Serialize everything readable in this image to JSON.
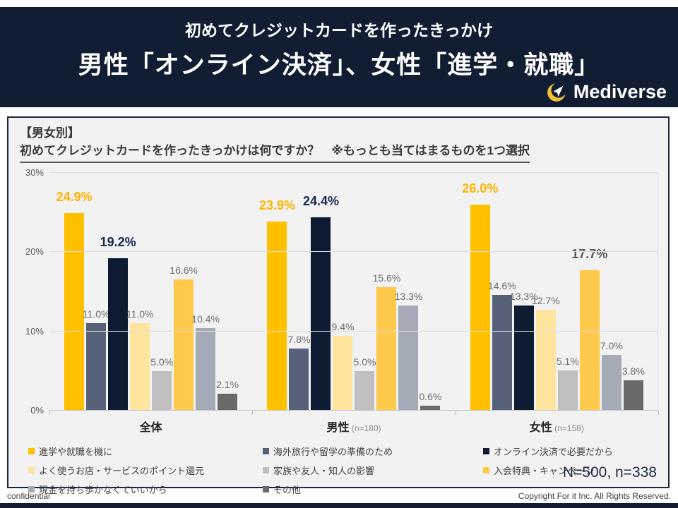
{
  "header": {
    "subtitle": "初めてクレジットカードを作ったきっかけ",
    "title": "男性「オンライン決済」、女性「進学・就職」",
    "brand": "Mediverse"
  },
  "panel": {
    "heading_line1": "【男女別】",
    "heading_line2": "初めてクレジットカードを作ったきっかけは何ですか？　※もっとも当てはまるものを1つ選択",
    "sample_note": "N=500, n=338"
  },
  "chart_data": {
    "type": "bar",
    "value_unit": "%",
    "ylim": [
      0,
      30
    ],
    "grid": true,
    "legend_position": "bottom",
    "yticks": [
      {
        "value": 0,
        "label": "0%"
      },
      {
        "value": 10,
        "label": "10%"
      },
      {
        "value": 20,
        "label": "20%"
      },
      {
        "value": 30,
        "label": "30%"
      }
    ],
    "series": [
      {
        "name": "進学や就職を機に",
        "color": "#FFC000"
      },
      {
        "name": "海外旅行や留学の準備のため",
        "color": "#57617a"
      },
      {
        "name": "オンライン決済で必要だから",
        "color": "#0d1b33"
      },
      {
        "name": "よく使うお店・サービスのポイント還元",
        "color": "#ffe49e"
      },
      {
        "name": "家族や友人・知人の影響",
        "color": "#bfbfbf"
      },
      {
        "name": "入会特典・キャンペーン",
        "color": "#ffc94b"
      },
      {
        "name": "現金を持ち歩かなくていいから",
        "color": "#a4aab6"
      },
      {
        "name": "その他",
        "color": "#696969"
      }
    ],
    "groups": [
      {
        "label": "全体",
        "sub": "",
        "values": [
          24.9,
          11.0,
          19.2,
          11.0,
          5.0,
          16.6,
          10.4,
          2.1
        ]
      },
      {
        "label": "男性",
        "sub": "(n=180)",
        "values": [
          23.9,
          7.8,
          24.4,
          9.4,
          5.0,
          15.6,
          13.3,
          0.6
        ]
      },
      {
        "label": "女性",
        "sub": "(n=158)",
        "values": [
          26.0,
          14.6,
          13.3,
          12.7,
          5.1,
          17.7,
          7.0,
          3.8
        ]
      }
    ],
    "emphasized_labels": [
      {
        "group": 0,
        "bar": 0,
        "style": "orange"
      },
      {
        "group": 0,
        "bar": 2,
        "style": "navy"
      },
      {
        "group": 1,
        "bar": 0,
        "style": "orange"
      },
      {
        "group": 1,
        "bar": 2,
        "style": "navy"
      },
      {
        "group": 2,
        "bar": 0,
        "style": "orange"
      },
      {
        "group": 2,
        "bar": 5,
        "style": "gray"
      }
    ]
  },
  "footer": {
    "left": "confidential",
    "right": "Copyright For it Inc. All Rights Reserved."
  },
  "colors": {
    "header_bg": "#101d33",
    "panel_bg": "#f2f2f2",
    "accent_orange": "#FFC000",
    "accent_navy": "#0d1b33",
    "logo_yellow": "#f2c230"
  }
}
